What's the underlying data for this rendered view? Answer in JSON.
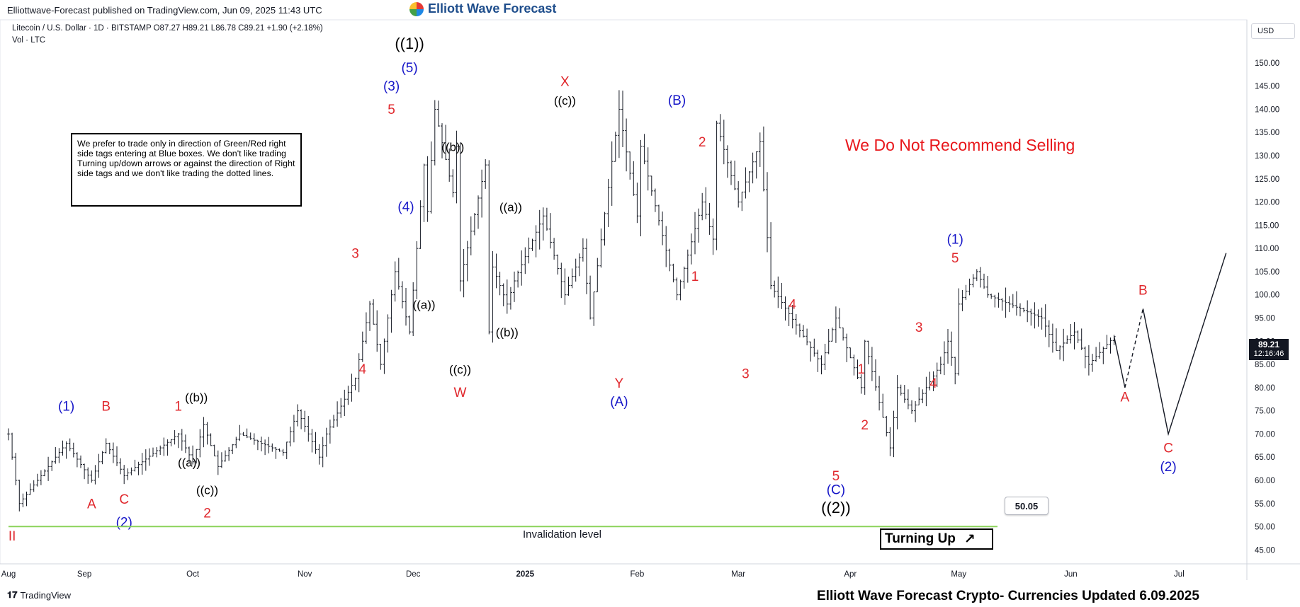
{
  "header": {
    "published": "Elliottwave-Forecast published on TradingView.com, Jun 09, 2025 11:43 UTC",
    "symbol_line": "Litecoin / U.S. Dollar · 1D · BITSTAMP  O87.27  H89.21  L86.78  C89.21  +1.90 (+2.18%)",
    "vol_line": "Vol · LTC",
    "logo_text": "Elliott Wave Forecast"
  },
  "note_box": "We prefer to trade only in direction of Green/Red right side tags entering at Blue boxes. We don't like trading Turning up/down arrows or against the direction of Right side tags and we don't like trading the dotted lines.",
  "no_sell": "We Do Not Recommend Selling",
  "turning": {
    "label": "Turning Up",
    "arrow": "↗"
  },
  "invalidation": {
    "label": "Invalidation level",
    "value": 50.05,
    "value_label": "50.05"
  },
  "price_axis": {
    "currency": "USD",
    "last_price": "89.21",
    "countdown": "12:16:46"
  },
  "footer": "Elliott Wave Forecast Crypto- Currencies Updated 6.09.2025",
  "tv_logo": "TradingView",
  "colors": {
    "wave_black": "#000000",
    "wave_blue": "#1515c8",
    "wave_red": "#e0282d",
    "invalidation": "#8bd35a",
    "bars": "#131722"
  },
  "chart_data": {
    "type": "ohlc",
    "ylim": [
      42,
      157
    ],
    "y_ticks": [
      45,
      50,
      55,
      60,
      65,
      70,
      75,
      80,
      85,
      90,
      95,
      100,
      105,
      110,
      115,
      120,
      125,
      130,
      135,
      140,
      145,
      150
    ],
    "x_ticks": [
      {
        "label": "Aug",
        "day": 0
      },
      {
        "label": "Sep",
        "day": 21
      },
      {
        "label": "Oct",
        "day": 51
      },
      {
        "label": "Nov",
        "day": 82
      },
      {
        "label": "Dec",
        "day": 112
      },
      {
        "label": "2025",
        "day": 143
      },
      {
        "label": "Feb",
        "day": 174
      },
      {
        "label": "Mar",
        "day": 202
      },
      {
        "label": "Apr",
        "day": 233
      },
      {
        "label": "May",
        "day": 263
      },
      {
        "label": "Jun",
        "day": 294
      },
      {
        "label": "Jul",
        "day": 324
      }
    ],
    "price_path_days": [
      0,
      3,
      16,
      23,
      27,
      32,
      47,
      51,
      54,
      58,
      64,
      76,
      80,
      86,
      88,
      96,
      100,
      103,
      107,
      111,
      115,
      116,
      118,
      123,
      124,
      125,
      132,
      133,
      134,
      138,
      140,
      148,
      154,
      159,
      161,
      169,
      174,
      175,
      185,
      192,
      195,
      196,
      202,
      208,
      211,
      225,
      229,
      236,
      237,
      244,
      246,
      250,
      258,
      260,
      262,
      263,
      268,
      271,
      286,
      290,
      295,
      299,
      306
    ],
    "price_path_values": [
      70,
      55,
      68,
      60,
      68,
      61,
      70,
      64,
      72,
      63,
      70,
      66,
      75,
      65,
      70,
      82,
      98,
      85,
      105,
      92,
      128,
      118,
      140,
      122,
      132,
      103,
      128,
      92,
      106,
      98,
      103,
      117,
      100,
      110,
      95,
      140,
      117,
      132,
      100,
      120,
      112,
      137,
      120,
      133,
      102,
      85,
      95,
      80,
      90,
      67,
      80,
      75,
      85,
      90,
      83,
      98,
      105,
      100,
      95,
      88,
      92,
      85,
      91
    ],
    "projection_path_days": [
      306,
      309
    ],
    "projection_path_values": [
      91,
      80
    ],
    "projection_dashed_days": [
      309,
      314
    ],
    "projection_dashed_values": [
      80,
      97
    ],
    "projection_days": [
      314,
      321,
      337
    ],
    "projection_values": [
      97,
      70,
      109
    ],
    "wave_labels": [
      {
        "text": "(1)",
        "day": 16,
        "price": 75,
        "color": "blue"
      },
      {
        "text": "A",
        "day": 23,
        "price": 54,
        "color": "red"
      },
      {
        "text": "B",
        "day": 27,
        "price": 75,
        "color": "red"
      },
      {
        "text": "C",
        "day": 32,
        "price": 55,
        "color": "red"
      },
      {
        "text": "(2)",
        "day": 32,
        "price": 50,
        "color": "blue"
      },
      {
        "text": "1",
        "day": 47,
        "price": 75,
        "color": "red"
      },
      {
        "text": "((b))",
        "day": 52,
        "price": 77,
        "color": "black"
      },
      {
        "text": "((a))",
        "day": 50,
        "price": 63,
        "color": "black"
      },
      {
        "text": "((c))",
        "day": 55,
        "price": 57,
        "color": "black"
      },
      {
        "text": "2",
        "day": 55,
        "price": 52,
        "color": "red"
      },
      {
        "text": "3",
        "day": 96,
        "price": 108,
        "color": "red"
      },
      {
        "text": "4",
        "day": 98,
        "price": 83,
        "color": "red"
      },
      {
        "text": "((1))",
        "day": 111,
        "price": 153,
        "color": "black"
      },
      {
        "text": "(5)",
        "day": 111,
        "price": 148,
        "color": "blue"
      },
      {
        "text": "(3)",
        "day": 106,
        "price": 144,
        "color": "blue"
      },
      {
        "text": "5",
        "day": 106,
        "price": 139,
        "color": "red"
      },
      {
        "text": "(4)",
        "day": 110,
        "price": 118,
        "color": "blue"
      },
      {
        "text": "((a))",
        "day": 115,
        "price": 97,
        "color": "black"
      },
      {
        "text": "((b))",
        "day": 123,
        "price": 131,
        "color": "black"
      },
      {
        "text": "((c))",
        "day": 125,
        "price": 83,
        "color": "black"
      },
      {
        "text": "W",
        "day": 125,
        "price": 78,
        "color": "red"
      },
      {
        "text": "((a))",
        "day": 139,
        "price": 118,
        "color": "black"
      },
      {
        "text": "((b))",
        "day": 138,
        "price": 91,
        "color": "black"
      },
      {
        "text": "X",
        "day": 154,
        "price": 145,
        "color": "red"
      },
      {
        "text": "((c))",
        "day": 154,
        "price": 141,
        "color": "black"
      },
      {
        "text": "Y",
        "day": 169,
        "price": 80,
        "color": "red"
      },
      {
        "text": "(A)",
        "day": 169,
        "price": 76,
        "color": "blue"
      },
      {
        "text": "(B)",
        "day": 185,
        "price": 141,
        "color": "blue"
      },
      {
        "text": "2",
        "day": 192,
        "price": 132,
        "color": "red"
      },
      {
        "text": "1",
        "day": 190,
        "price": 103,
        "color": "red"
      },
      {
        "text": "3",
        "day": 204,
        "price": 82,
        "color": "red"
      },
      {
        "text": "4",
        "day": 217,
        "price": 97,
        "color": "red"
      },
      {
        "text": "5",
        "day": 229,
        "price": 60,
        "color": "red"
      },
      {
        "text": "(C)",
        "day": 229,
        "price": 57,
        "color": "blue"
      },
      {
        "text": "((2))",
        "day": 229,
        "price": 53,
        "color": "black"
      },
      {
        "text": "1",
        "day": 236,
        "price": 83,
        "color": "red"
      },
      {
        "text": "2",
        "day": 237,
        "price": 71,
        "color": "red"
      },
      {
        "text": "3",
        "day": 252,
        "price": 92,
        "color": "red"
      },
      {
        "text": "4",
        "day": 256,
        "price": 80,
        "color": "red"
      },
      {
        "text": "(1)",
        "day": 262,
        "price": 111,
        "color": "blue"
      },
      {
        "text": "5",
        "day": 262,
        "price": 107,
        "color": "red"
      },
      {
        "text": "A",
        "day": 309,
        "price": 77,
        "color": "red"
      },
      {
        "text": "B",
        "day": 314,
        "price": 100,
        "color": "red"
      },
      {
        "text": "C",
        "day": 321,
        "price": 66,
        "color": "red"
      },
      {
        "text": "(2)",
        "day": 321,
        "price": 62,
        "color": "blue"
      },
      {
        "text": "II",
        "day": 1,
        "price": 47,
        "color": "red"
      }
    ]
  }
}
